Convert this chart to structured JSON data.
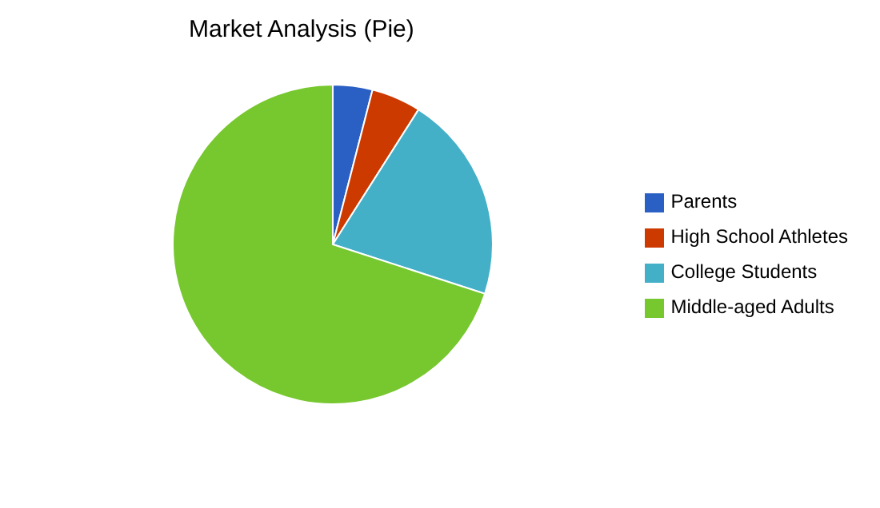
{
  "chart_data": {
    "type": "pie",
    "title": "Market Analysis (Pie)",
    "categories": [
      "Parents",
      "High School Athletes",
      "College Students",
      "Middle-aged Adults"
    ],
    "values": [
      4,
      5,
      21,
      70
    ],
    "colors": [
      "#2a5fc4",
      "#cc3a00",
      "#44b0c8",
      "#77c72e"
    ],
    "legend": "right"
  }
}
